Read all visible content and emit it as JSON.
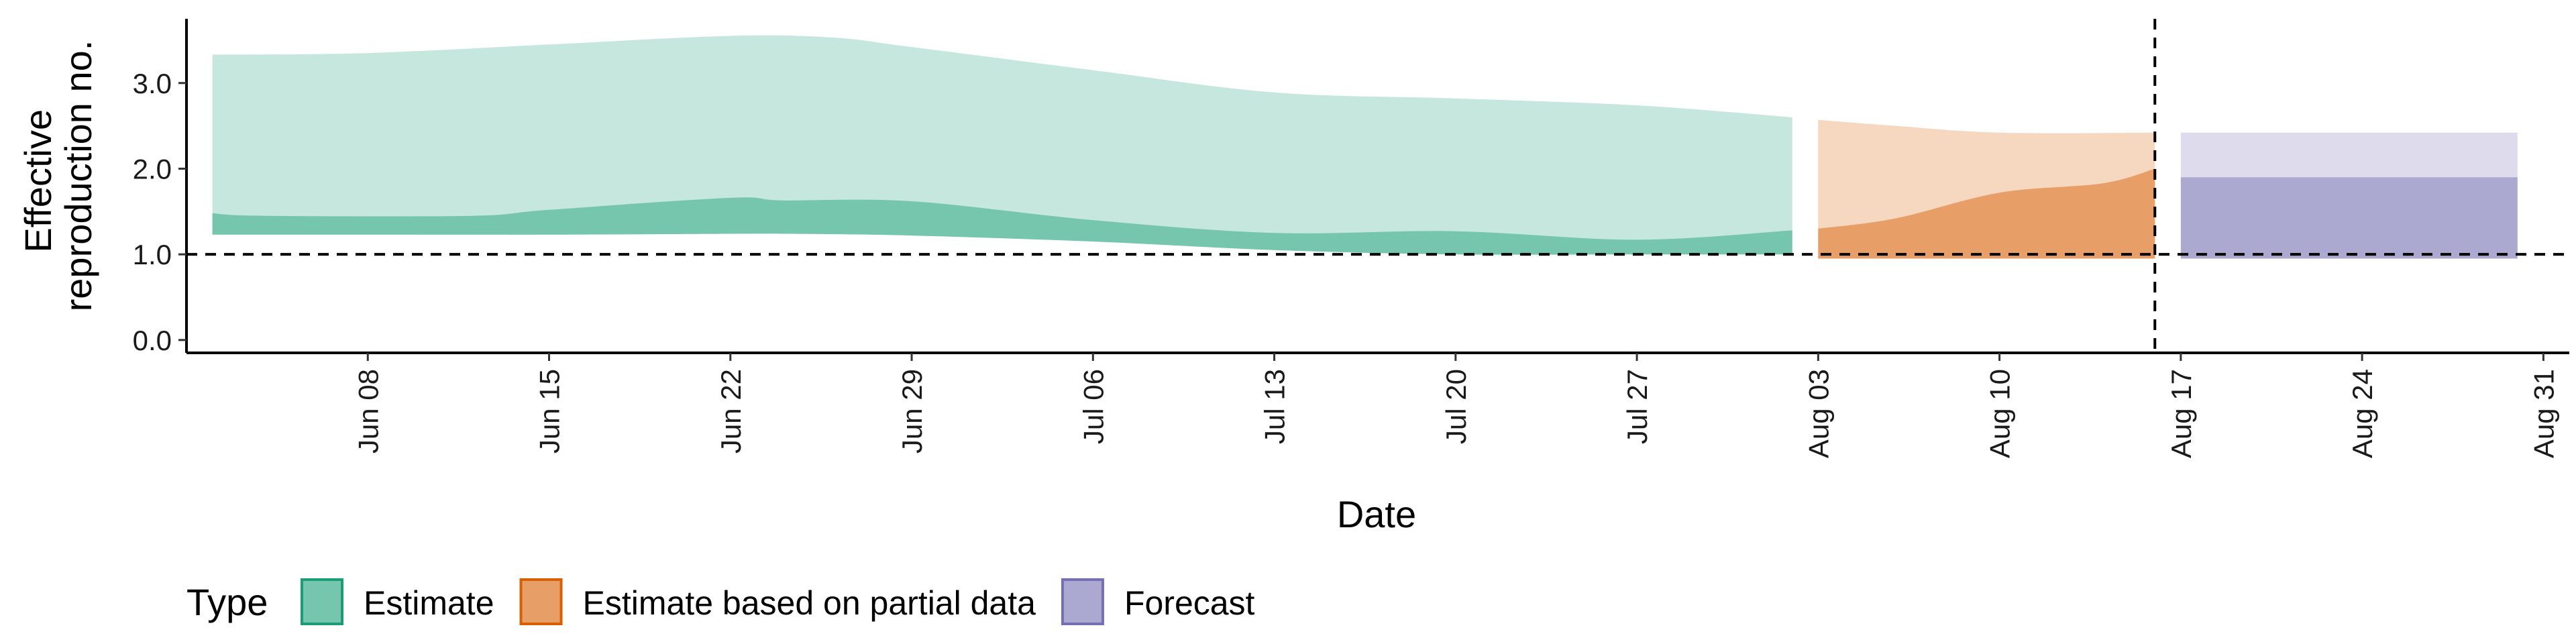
{
  "chart_data": {
    "type": "area",
    "xlabel": "Date",
    "ylabel_lines": [
      "Effective",
      "reproduction no."
    ],
    "legend_title": "Type",
    "legend_position": "bottom",
    "grid": false,
    "x_domain": [
      "2020-06-01",
      "2020-09-01"
    ],
    "ylim": [
      -0.15,
      3.75
    ],
    "y_ticks": [
      {
        "v": 0,
        "label": "0.0"
      },
      {
        "v": 1,
        "label": "1.0"
      },
      {
        "v": 2,
        "label": "2.0"
      },
      {
        "v": 3,
        "label": "3.0"
      }
    ],
    "x_ticks": [
      {
        "date": "2020-06-08",
        "label": "Jun 08"
      },
      {
        "date": "2020-06-15",
        "label": "Jun 15"
      },
      {
        "date": "2020-06-22",
        "label": "Jun 22"
      },
      {
        "date": "2020-06-29",
        "label": "Jun 29"
      },
      {
        "date": "2020-07-06",
        "label": "Jul 06"
      },
      {
        "date": "2020-07-13",
        "label": "Jul 13"
      },
      {
        "date": "2020-07-20",
        "label": "Jul 20"
      },
      {
        "date": "2020-07-27",
        "label": "Jul 27"
      },
      {
        "date": "2020-08-03",
        "label": "Aug 03"
      },
      {
        "date": "2020-08-10",
        "label": "Aug 10"
      },
      {
        "date": "2020-08-17",
        "label": "Aug 17"
      },
      {
        "date": "2020-08-24",
        "label": "Aug 24"
      },
      {
        "date": "2020-08-31",
        "label": "Aug 31"
      }
    ],
    "reference_lines": {
      "horizontal_y": 1.0,
      "vertical_date": "2020-08-16"
    },
    "series": [
      {
        "name": "Estimate",
        "color": "#1b9e77",
        "outer": [
          {
            "x": "2020-06-02",
            "lo": 1.23,
            "hi": 3.33
          },
          {
            "x": "2020-06-08",
            "lo": 1.23,
            "hi": 3.35
          },
          {
            "x": "2020-06-15",
            "lo": 1.23,
            "hi": 3.45
          },
          {
            "x": "2020-06-22",
            "lo": 1.24,
            "hi": 3.55
          },
          {
            "x": "2020-06-26",
            "lo": 1.24,
            "hi": 3.53
          },
          {
            "x": "2020-06-29",
            "lo": 1.22,
            "hi": 3.42
          },
          {
            "x": "2020-07-06",
            "lo": 1.15,
            "hi": 3.15
          },
          {
            "x": "2020-07-13",
            "lo": 1.05,
            "hi": 2.89
          },
          {
            "x": "2020-07-20",
            "lo": 1.0,
            "hi": 2.82
          },
          {
            "x": "2020-07-27",
            "lo": 1.0,
            "hi": 2.74
          },
          {
            "x": "2020-08-02",
            "lo": 1.0,
            "hi": 2.6
          }
        ],
        "inner": [
          {
            "x": "2020-06-02",
            "lo": 1.23,
            "hi": 1.48
          },
          {
            "x": "2020-06-04",
            "lo": 1.23,
            "hi": 1.45
          },
          {
            "x": "2020-06-12",
            "lo": 1.23,
            "hi": 1.45
          },
          {
            "x": "2020-06-15",
            "lo": 1.23,
            "hi": 1.52
          },
          {
            "x": "2020-06-22",
            "lo": 1.24,
            "hi": 1.66
          },
          {
            "x": "2020-06-24",
            "lo": 1.24,
            "hi": 1.63
          },
          {
            "x": "2020-06-29",
            "lo": 1.22,
            "hi": 1.62
          },
          {
            "x": "2020-07-06",
            "lo": 1.15,
            "hi": 1.4
          },
          {
            "x": "2020-07-13",
            "lo": 1.05,
            "hi": 1.25
          },
          {
            "x": "2020-07-20",
            "lo": 1.0,
            "hi": 1.27
          },
          {
            "x": "2020-07-27",
            "lo": 1.0,
            "hi": 1.17
          },
          {
            "x": "2020-08-02",
            "lo": 1.0,
            "hi": 1.28
          }
        ]
      },
      {
        "name": "Estimate based on partial data",
        "color": "#d95f02",
        "outer": [
          {
            "x": "2020-08-03",
            "lo": 0.95,
            "hi": 2.57
          },
          {
            "x": "2020-08-06",
            "lo": 0.95,
            "hi": 2.5
          },
          {
            "x": "2020-08-10",
            "lo": 0.95,
            "hi": 2.42
          },
          {
            "x": "2020-08-16",
            "lo": 0.95,
            "hi": 2.42
          }
        ],
        "inner": [
          {
            "x": "2020-08-03",
            "lo": 0.95,
            "hi": 1.3
          },
          {
            "x": "2020-08-06",
            "lo": 0.95,
            "hi": 1.42
          },
          {
            "x": "2020-08-10",
            "lo": 0.95,
            "hi": 1.72
          },
          {
            "x": "2020-08-14",
            "lo": 0.95,
            "hi": 1.83
          },
          {
            "x": "2020-08-16",
            "lo": 0.95,
            "hi": 2.0
          }
        ]
      },
      {
        "name": "Forecast",
        "color": "#7570b3",
        "outer": [
          {
            "x": "2020-08-17",
            "lo": 0.95,
            "hi": 2.42
          },
          {
            "x": "2020-08-30",
            "lo": 0.95,
            "hi": 2.42
          }
        ],
        "inner": [
          {
            "x": "2020-08-17",
            "lo": 0.95,
            "hi": 1.9
          },
          {
            "x": "2020-08-30",
            "lo": 0.95,
            "hi": 1.9
          }
        ]
      }
    ]
  }
}
